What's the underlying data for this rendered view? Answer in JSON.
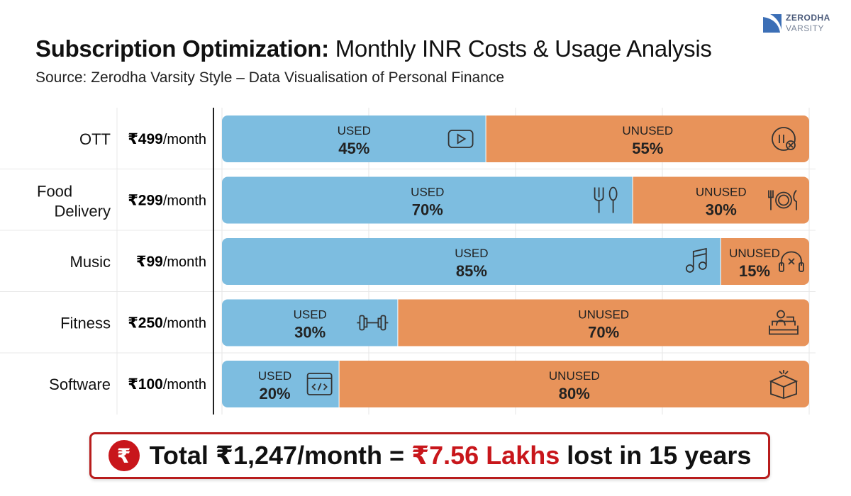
{
  "title_bold": "Subscription Optimization:",
  "title_rest": " Monthly INR Costs & Usage Analysis",
  "subtitle": "Source: Zerodha Varsity Style – Data Visualisation of Personal Finance",
  "logo": {
    "line1": "ZERODHA",
    "line2": "VARSITY"
  },
  "colors": {
    "used": "#7dbde0",
    "unused": "#e8935a",
    "accent": "#c8161b"
  },
  "chart_data": {
    "type": "bar",
    "orientation": "horizontal",
    "stacked": true,
    "xlim": [
      0,
      100
    ],
    "grid": true,
    "categories": [
      "OTT",
      "Food Delivery",
      "Music",
      "Fitness",
      "Software"
    ],
    "category_lines": [
      [
        "OTT"
      ],
      [
        "Food",
        "Delivery"
      ],
      [
        "Music"
      ],
      [
        "Fitness"
      ],
      [
        "Software"
      ]
    ],
    "prices": [
      "₹499",
      "₹299",
      "₹99",
      "₹250",
      "₹100"
    ],
    "price_unit": "/month",
    "series": [
      {
        "name": "USED",
        "values": [
          45,
          70,
          85,
          30,
          20
        ],
        "icons": [
          "play-icon",
          "fork-spoon-icon",
          "music-note-icon",
          "dumbbell-icon",
          "code-window-icon"
        ]
      },
      {
        "name": "UNUSED",
        "values": [
          55,
          30,
          15,
          70,
          80
        ],
        "icons": [
          "pause-cancel-icon",
          "plate-icon",
          "headphones-off-icon",
          "sofa-person-icon",
          "empty-box-icon"
        ]
      }
    ]
  },
  "banner": {
    "icon": "rupee-coin-icon",
    "coin_symbol": "₹",
    "part1": "Total ₹1,247/month = ",
    "highlight": "₹7.56 Lakhs",
    "part2": " lost in 15 years"
  }
}
